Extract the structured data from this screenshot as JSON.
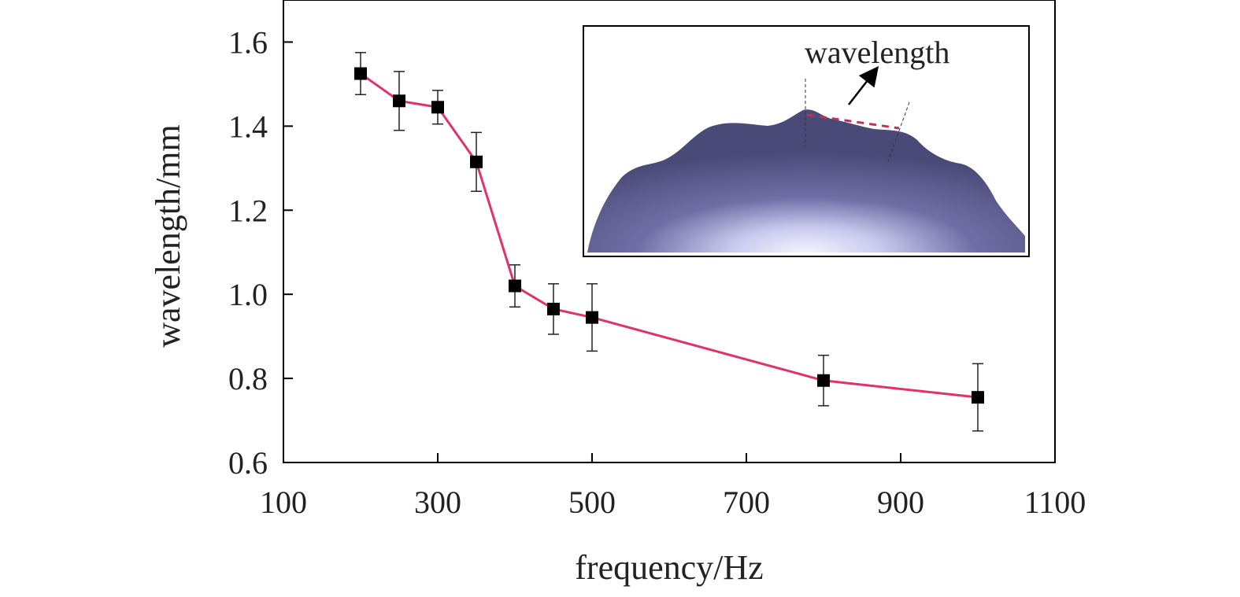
{
  "chart_data": {
    "type": "line",
    "xlabel": "frequency/Hz",
    "ylabel": "wavelength/mm",
    "xlim": [
      100,
      1100
    ],
    "ylim": [
      0.6,
      1.7
    ],
    "xticks": [
      100,
      300,
      500,
      700,
      900,
      1100
    ],
    "yticks": [
      0.6,
      0.8,
      1.0,
      1.2,
      1.4,
      1.6
    ],
    "xtick_labels": [
      "100",
      "300",
      "500",
      "700",
      "900",
      "1100"
    ],
    "ytick_labels": [
      "0.6",
      "0.8",
      "1.0",
      "1.2",
      "1.4",
      "1.6"
    ],
    "grid": false,
    "series": [
      {
        "x": [
          200,
          250,
          300,
          350,
          400,
          450,
          500,
          800,
          1000
        ],
        "y": [
          1.525,
          1.46,
          1.445,
          1.315,
          1.02,
          0.965,
          0.945,
          0.795,
          0.755
        ],
        "error": [
          0.05,
          0.07,
          0.04,
          0.07,
          0.05,
          0.06,
          0.08,
          0.06,
          0.08
        ]
      }
    ],
    "colors": {
      "line": "#e0336b",
      "marker": "#000000",
      "errorbar": "#222222"
    },
    "inset": {
      "description_label": "wavelength",
      "surface_color": "#4a4a78",
      "highlight_color": "#f4f4ff"
    }
  }
}
